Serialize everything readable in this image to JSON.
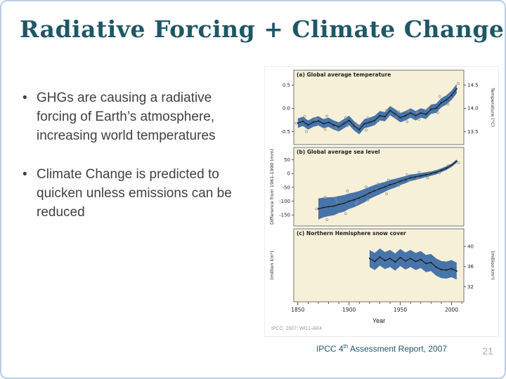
{
  "slide": {
    "title": "Radiative Forcing + Climate Change",
    "bullet_char": "•",
    "bullets": [
      "GHGs are causing a radiative forcing of Earth’s atmosphere, increasing world temperatures",
      "Climate Change is predicted to quicken unless emissions can be reduced"
    ],
    "credit_parts": [
      "IPCC 4",
      "th",
      " Assessment Report, 2007"
    ],
    "page_number": "21"
  },
  "colors": {
    "title": "#1f5766",
    "body_text": "#3f3f46",
    "accent_border": "#b9cde4",
    "plot_bg": "#f6f0d9",
    "band": "#3d6da6",
    "line": "#151515"
  },
  "figure": {
    "xlabel": "Year",
    "caption": "IPCC, 2007: WG1-AR4",
    "xlim": [
      1846,
      2012
    ],
    "x_ticks": [
      1850,
      1900,
      1950,
      2000
    ]
  },
  "chart_data": [
    {
      "type": "line",
      "title": "(a) Global average temperature",
      "x": [
        1850,
        1855,
        1860,
        1865,
        1870,
        1875,
        1880,
        1885,
        1890,
        1895,
        1900,
        1905,
        1910,
        1915,
        1920,
        1925,
        1930,
        1935,
        1940,
        1945,
        1950,
        1955,
        1960,
        1965,
        1970,
        1975,
        1980,
        1985,
        1990,
        1995,
        2000,
        2005
      ],
      "values": [
        -0.32,
        -0.28,
        -0.36,
        -0.3,
        -0.27,
        -0.33,
        -0.3,
        -0.36,
        -0.4,
        -0.33,
        -0.26,
        -0.38,
        -0.46,
        -0.33,
        -0.3,
        -0.26,
        -0.16,
        -0.18,
        -0.05,
        -0.12,
        -0.2,
        -0.16,
        -0.1,
        -0.16,
        -0.1,
        -0.13,
        -0.02,
        0.0,
        0.12,
        0.18,
        0.28,
        0.42
      ],
      "band": 0.1,
      "ylim": [
        -0.78,
        0.82
      ],
      "yticks_left": [
        0.5,
        0.0,
        -0.5
      ],
      "yticks_left_labels": [
        "0.5",
        "0.0",
        "-0.5"
      ],
      "yticks_right": [
        0.5,
        0.0,
        -0.5
      ],
      "yticks_right_labels": [
        "14.5",
        "14.0",
        "13.5"
      ],
      "right_label": "Temperature (°C)",
      "left_label": "",
      "scatter": true
    },
    {
      "type": "line",
      "title": "(b) Global average sea level",
      "x": [
        1870,
        1875,
        1880,
        1885,
        1890,
        1895,
        1900,
        1905,
        1910,
        1915,
        1920,
        1925,
        1930,
        1935,
        1940,
        1945,
        1950,
        1955,
        1960,
        1965,
        1970,
        1975,
        1980,
        1985,
        1990,
        1995,
        2000,
        2005
      ],
      "values": [
        -128,
        -123,
        -120,
        -118,
        -112,
        -108,
        -100,
        -95,
        -88,
        -80,
        -70,
        -62,
        -55,
        -48,
        -40,
        -35,
        -28,
        -22,
        -15,
        -12,
        -8,
        -4,
        0,
        5,
        12,
        20,
        30,
        45
      ],
      "band": [
        38,
        36,
        34,
        33,
        31,
        30,
        28,
        27,
        25,
        24,
        22,
        21,
        20,
        18,
        17,
        16,
        14,
        13,
        12,
        11,
        10,
        9,
        8,
        8,
        7,
        7,
        6,
        6
      ],
      "ylim": [
        -190,
        95
      ],
      "yticks_left": [
        50,
        0,
        -50,
        -100,
        -150
      ],
      "yticks_left_labels": [
        "50",
        "0",
        "-50",
        "-100",
        "-150"
      ],
      "left_label": "Difference from 1961-1990 (mm)",
      "right_label": "",
      "scatter": true
    },
    {
      "type": "line",
      "title": "(c) Northern Hemisphere snow cover",
      "x": [
        1920,
        1925,
        1930,
        1935,
        1940,
        1945,
        1950,
        1955,
        1960,
        1965,
        1970,
        1975,
        1980,
        1985,
        1990,
        1995,
        2000,
        2005
      ],
      "values": [
        37.6,
        37.0,
        37.9,
        37.2,
        37.6,
        36.9,
        37.8,
        37.1,
        37.6,
        37.0,
        37.4,
        36.6,
        36.8,
        35.9,
        35.4,
        35.3,
        35.6,
        35.1
      ],
      "band": 1.7,
      "ylim": [
        29.0,
        43.5
      ],
      "yticks_right": [
        40,
        36,
        32
      ],
      "yticks_right_labels": [
        "40",
        "36",
        "32"
      ],
      "right_label": "(million km²)",
      "left_label": "(million km²)",
      "scatter": false
    }
  ]
}
